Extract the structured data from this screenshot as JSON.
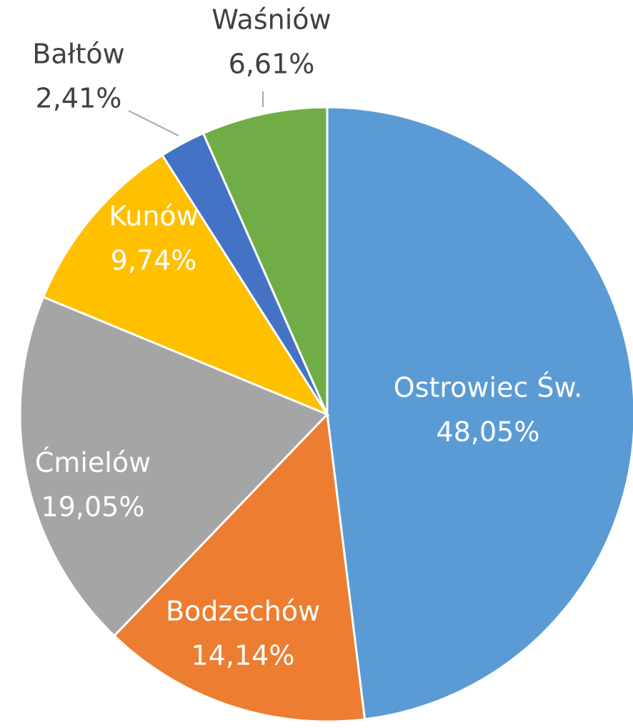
{
  "chart_data": {
    "type": "pie",
    "categories": [
      "Ostrowiec Św.",
      "Bodzechów",
      "Ćmielów",
      "Kunów",
      "Bałtów",
      "Waśniów"
    ],
    "values": [
      48.05,
      14.14,
      19.05,
      9.74,
      2.41,
      6.61
    ],
    "value_labels": [
      "48,05%",
      "14,14%",
      "19,05%",
      "9,74%",
      "2,41%",
      "6,61%"
    ],
    "colors": [
      "#5b9bd5",
      "#ed7d31",
      "#a5a5a5",
      "#ffc000",
      "#4472c4",
      "#70ad47"
    ]
  }
}
